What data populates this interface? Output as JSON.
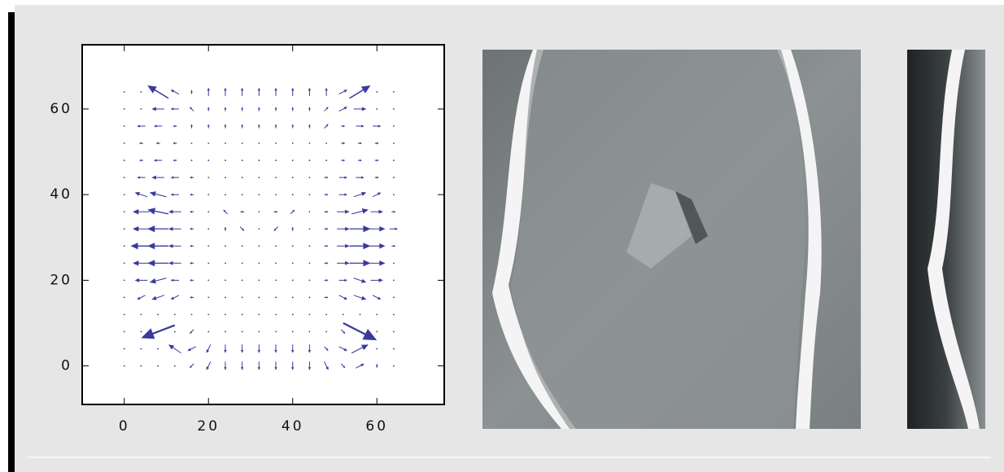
{
  "chart_data": {
    "type": "quiver",
    "x": [
      0,
      4,
      8,
      12,
      16,
      20,
      24,
      28,
      32,
      36,
      40,
      44,
      48,
      52,
      56,
      60,
      64
    ],
    "y": [
      0,
      4,
      8,
      12,
      16,
      20,
      24,
      28,
      32,
      36,
      40,
      44,
      48,
      52,
      56,
      60,
      64
    ],
    "u": [
      [
        0,
        0,
        0,
        0,
        -1,
        -1,
        0,
        0,
        0,
        0,
        0,
        0,
        1,
        1,
        2,
        0,
        0
      ],
      [
        0,
        0,
        0,
        -3,
        -2,
        -1,
        0,
        0,
        0,
        0,
        0,
        0,
        1,
        2,
        4,
        0,
        0
      ],
      [
        0,
        0,
        -8,
        0,
        -1,
        0,
        0,
        0,
        0,
        0,
        0,
        0,
        0,
        1,
        8,
        0,
        0
      ],
      [
        0,
        0,
        0,
        0,
        0,
        0,
        0,
        0,
        0,
        0,
        0,
        0,
        0,
        0,
        0,
        0,
        0
      ],
      [
        0,
        -2,
        -3,
        -2,
        -1,
        0,
        0,
        0,
        0,
        0,
        0,
        0,
        1,
        2,
        3,
        2,
        0
      ],
      [
        0,
        -3,
        -4,
        -2,
        -1,
        0,
        0,
        0,
        0,
        0,
        0,
        0,
        1,
        2,
        3,
        3,
        0
      ],
      [
        0,
        -4,
        -5,
        -3,
        -1,
        0,
        0,
        0,
        0,
        0,
        0,
        0,
        1,
        3,
        5,
        4,
        0
      ],
      [
        0,
        -5,
        -5,
        -3,
        -1,
        0,
        0,
        0,
        0,
        0,
        0,
        0,
        1,
        3,
        5,
        4,
        1
      ],
      [
        0,
        -4,
        -5,
        -3,
        -1,
        0,
        0,
        1,
        0,
        -1,
        0,
        0,
        1,
        3,
        5,
        4,
        2
      ],
      [
        0,
        -4,
        -5,
        -3,
        -1,
        0,
        -1,
        -1,
        0,
        1,
        1,
        0,
        1,
        3,
        4,
        3,
        1
      ],
      [
        0,
        -3,
        -4,
        -2,
        -1,
        0,
        0,
        0,
        0,
        0,
        0,
        0,
        1,
        2,
        3,
        2,
        0
      ],
      [
        0,
        -2,
        -3,
        -2,
        -1,
        0,
        0,
        0,
        0,
        0,
        0,
        0,
        1,
        2,
        2,
        1,
        0
      ],
      [
        0,
        -1,
        -2,
        -1,
        0,
        0,
        0,
        0,
        0,
        0,
        0,
        0,
        0,
        1,
        1,
        1,
        0
      ],
      [
        0,
        -1,
        -1,
        -1,
        0,
        0,
        0,
        0,
        0,
        0,
        0,
        0,
        0,
        1,
        1,
        1,
        0
      ],
      [
        0,
        -2,
        -2,
        -1,
        0,
        0,
        0,
        0,
        0,
        0,
        0,
        0,
        1,
        1,
        2,
        2,
        0
      ],
      [
        0,
        0,
        -3,
        -2,
        -1,
        0,
        0,
        0,
        0,
        0,
        0,
        0,
        1,
        2,
        3,
        0,
        0
      ],
      [
        0,
        0,
        -5,
        -2,
        0,
        0,
        0,
        0,
        0,
        0,
        0,
        0,
        0,
        2,
        5,
        0,
        0
      ]
    ],
    "v": [
      [
        0,
        0,
        0,
        0,
        -1,
        -2,
        -2,
        -2,
        -2,
        -2,
        -2,
        -2,
        -2,
        -1,
        1,
        -1,
        0
      ],
      [
        0,
        0,
        0,
        2,
        -1,
        -2,
        -2,
        -2,
        -2,
        -2,
        -2,
        -2,
        -1,
        -1,
        2,
        0,
        0
      ],
      [
        0,
        0,
        -3,
        0,
        -1,
        0,
        0,
        0,
        0,
        0,
        0,
        0,
        0,
        -1,
        -4,
        0,
        0
      ],
      [
        0,
        0,
        0,
        0,
        0,
        0,
        0,
        0,
        0,
        0,
        0,
        0,
        0,
        0,
        0,
        0,
        0
      ],
      [
        0,
        -1,
        -1,
        -1,
        0,
        0,
        0,
        0,
        0,
        0,
        0,
        0,
        0,
        -1,
        -1,
        -1,
        0
      ],
      [
        0,
        0,
        -1,
        0,
        0,
        0,
        0,
        0,
        0,
        0,
        0,
        0,
        0,
        0,
        -1,
        0,
        0
      ],
      [
        0,
        0,
        0,
        0,
        0,
        0,
        0,
        0,
        0,
        0,
        0,
        0,
        0,
        0,
        0,
        0,
        0
      ],
      [
        0,
        0,
        0,
        0,
        0,
        0,
        0,
        0,
        0,
        0,
        0,
        0,
        0,
        0,
        0,
        0,
        0
      ],
      [
        0,
        0,
        0,
        0,
        0,
        0,
        1,
        -1,
        0,
        -1,
        1,
        0,
        0,
        0,
        0,
        0,
        0
      ],
      [
        0,
        0,
        1,
        0,
        0,
        0,
        1,
        0,
        0,
        0,
        1,
        0,
        0,
        0,
        1,
        0,
        0
      ],
      [
        0,
        1,
        1,
        0,
        0,
        0,
        0,
        0,
        0,
        0,
        0,
        0,
        0,
        0,
        1,
        1,
        0
      ],
      [
        0,
        0,
        0,
        0,
        0,
        0,
        0,
        0,
        0,
        0,
        0,
        0,
        0,
        0,
        0,
        0,
        0
      ],
      [
        0,
        0,
        0,
        0,
        0,
        0,
        0,
        0,
        0,
        0,
        0,
        0,
        0,
        0,
        0,
        0,
        0
      ],
      [
        0,
        0,
        0,
        0,
        0,
        0,
        0,
        0,
        0,
        0,
        0,
        0,
        0,
        0,
        0,
        0,
        0
      ],
      [
        0,
        0,
        0,
        0,
        1,
        1,
        1,
        1,
        1,
        1,
        1,
        1,
        1,
        0,
        0,
        0,
        0
      ],
      [
        0,
        0,
        0,
        0,
        1,
        1,
        1,
        1,
        1,
        1,
        1,
        1,
        1,
        1,
        0,
        0,
        0
      ],
      [
        0,
        0,
        3,
        1,
        1,
        2,
        2,
        2,
        2,
        2,
        2,
        2,
        2,
        1,
        3,
        0,
        0
      ]
    ],
    "color": "#3a3a9c",
    "xlim": [
      -10,
      76
    ],
    "ylim": [
      -9,
      75
    ],
    "xticks": [
      0,
      20,
      40,
      60
    ],
    "yticks": [
      0,
      20,
      40,
      60
    ]
  }
}
